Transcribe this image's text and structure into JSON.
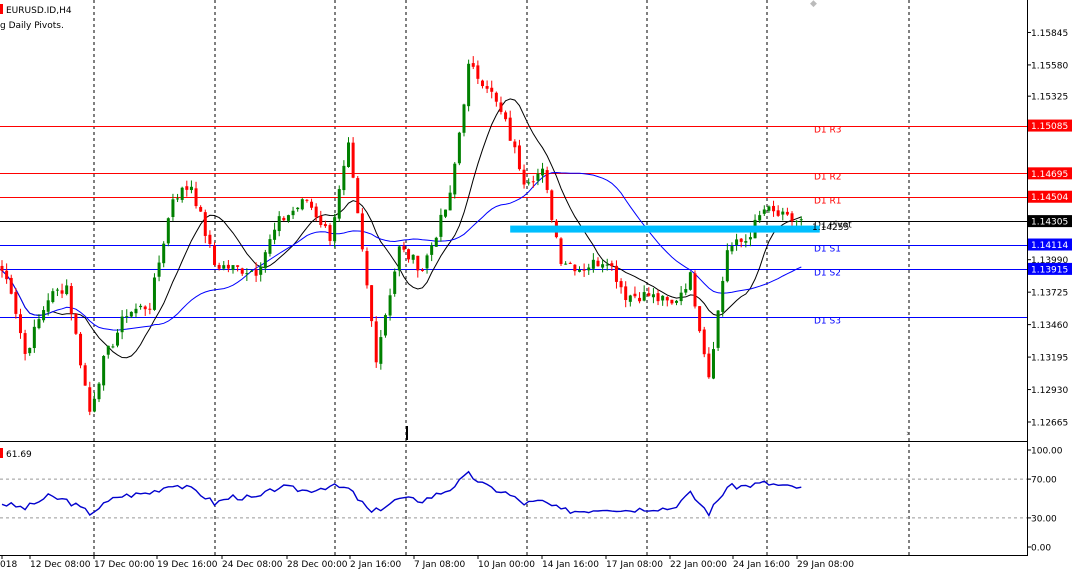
{
  "window": {
    "symbol_title": "EURUSD.ID,H4",
    "indicator_title": "g Daily Pivots.",
    "sub_indicator_value": "61.69"
  },
  "colors": {
    "background": "#ffffff",
    "bull": "#008000",
    "bear": "#ff0000",
    "resistance": "#ff0000",
    "support": "#0000ff",
    "pivot": "#000000",
    "ma_fast": "#000000",
    "ma_slow": "#0000ff",
    "zone": "#00bfff",
    "rsi": "#0000cd"
  },
  "chart_data": [
    {
      "type": "candlestick",
      "symbol": "EURUSD.ID",
      "timeframe": "H4",
      "y_ticks": [
        "1.15845",
        "1.15580",
        "1.15325",
        "1.15085",
        "1.14695",
        "1.14504",
        "1.14305",
        "1.14114",
        "1.13990",
        "1.13915",
        "1.13725",
        "1.13460",
        "1.13195",
        "1.12930",
        "1.12665"
      ],
      "ylim": [
        1.1251,
        1.1611
      ],
      "x_ticks": [
        "018",
        "12 Dec 08:00",
        "17 Dec 00:00",
        "19 Dec 16:00",
        "24 Dec 08:00",
        "28 Dec 00:00",
        "2 Jan 16:00",
        "7 Jan 08:00",
        "10 Jan 00:00",
        "14 Jan 16:00",
        "17 Jan 08:00",
        "22 Jan 00:00",
        "24 Jan 16:00",
        "29 Jan 08:00"
      ],
      "pivot_levels": [
        {
          "name": "D1 R3",
          "value": 1.15085,
          "label": "1.15085",
          "role": "resistance"
        },
        {
          "name": "D1 R2",
          "value": 1.14695,
          "label": "1.14695",
          "role": "resistance"
        },
        {
          "name": "D1 R1",
          "value": 1.14504,
          "label": "1.14504",
          "role": "resistance"
        },
        {
          "name": "D1 Pivot",
          "value": 1.14305,
          "label": "1.14305",
          "role": "pivot"
        },
        {
          "name": "D1 S1",
          "value": 1.14114,
          "label": "1.14114",
          "role": "support"
        },
        {
          "name": "D1 S2",
          "value": 1.13915,
          "label": "1.13915",
          "role": "support"
        },
        {
          "name": "D1 S3",
          "value": 1.13525,
          "label": "1.13525",
          "role": "support"
        }
      ],
      "current_price_label": "1.14255",
      "zone": {
        "price": 1.1424,
        "start_index": 110,
        "end_index": 177
      },
      "key_points": [
        {
          "i": 0,
          "p": 1.139
        },
        {
          "i": 2,
          "p": 1.1375
        },
        {
          "i": 5,
          "p": 1.1322
        },
        {
          "i": 10,
          "p": 1.1368
        },
        {
          "i": 14,
          "p": 1.1378
        },
        {
          "i": 19,
          "p": 1.1275
        },
        {
          "i": 22,
          "p": 1.1316
        },
        {
          "i": 27,
          "p": 1.1356
        },
        {
          "i": 32,
          "p": 1.1362
        },
        {
          "i": 37,
          "p": 1.145
        },
        {
          "i": 41,
          "p": 1.146
        },
        {
          "i": 46,
          "p": 1.1395
        },
        {
          "i": 50,
          "p": 1.1392
        },
        {
          "i": 55,
          "p": 1.139
        },
        {
          "i": 60,
          "p": 1.143
        },
        {
          "i": 66,
          "p": 1.1448
        },
        {
          "i": 71,
          "p": 1.1418
        },
        {
          "i": 75,
          "p": 1.149
        },
        {
          "i": 81,
          "p": 1.132
        },
        {
          "i": 86,
          "p": 1.1408
        },
        {
          "i": 91,
          "p": 1.1392
        },
        {
          "i": 97,
          "p": 1.145
        },
        {
          "i": 101,
          "p": 1.1556
        },
        {
          "i": 105,
          "p": 1.1542
        },
        {
          "i": 109,
          "p": 1.151
        },
        {
          "i": 113,
          "p": 1.1465
        },
        {
          "i": 117,
          "p": 1.147
        },
        {
          "i": 121,
          "p": 1.14
        },
        {
          "i": 125,
          "p": 1.1392
        },
        {
          "i": 131,
          "p": 1.14
        },
        {
          "i": 135,
          "p": 1.137
        },
        {
          "i": 140,
          "p": 1.137
        },
        {
          "i": 145,
          "p": 1.1362
        },
        {
          "i": 149,
          "p": 1.1385
        },
        {
          "i": 153,
          "p": 1.1305
        },
        {
          "i": 157,
          "p": 1.1408
        },
        {
          "i": 161,
          "p": 1.1415
        },
        {
          "i": 165,
          "p": 1.144
        },
        {
          "i": 170,
          "p": 1.1432
        },
        {
          "i": 173,
          "p": 1.143
        }
      ],
      "candle_count": 174
    },
    {
      "type": "line",
      "name": "RSI",
      "y_ticks": [
        "100.00",
        "70.00",
        "30.00",
        "0.00"
      ],
      "ylim": [
        0,
        100
      ],
      "levels": [
        70,
        30
      ],
      "key_points": [
        {
          "i": 0,
          "v": 45
        },
        {
          "i": 5,
          "v": 40
        },
        {
          "i": 10,
          "v": 52
        },
        {
          "i": 14,
          "v": 48
        },
        {
          "i": 19,
          "v": 35
        },
        {
          "i": 25,
          "v": 52
        },
        {
          "i": 32,
          "v": 56
        },
        {
          "i": 37,
          "v": 65
        },
        {
          "i": 42,
          "v": 58
        },
        {
          "i": 46,
          "v": 45
        },
        {
          "i": 50,
          "v": 52
        },
        {
          "i": 55,
          "v": 50
        },
        {
          "i": 60,
          "v": 62
        },
        {
          "i": 66,
          "v": 58
        },
        {
          "i": 71,
          "v": 63
        },
        {
          "i": 75,
          "v": 60
        },
        {
          "i": 80,
          "v": 35
        },
        {
          "i": 86,
          "v": 50
        },
        {
          "i": 91,
          "v": 48
        },
        {
          "i": 97,
          "v": 60
        },
        {
          "i": 101,
          "v": 75
        },
        {
          "i": 105,
          "v": 62
        },
        {
          "i": 109,
          "v": 56
        },
        {
          "i": 113,
          "v": 45
        },
        {
          "i": 117,
          "v": 47
        },
        {
          "i": 121,
          "v": 38
        },
        {
          "i": 125,
          "v": 37
        },
        {
          "i": 131,
          "v": 40
        },
        {
          "i": 135,
          "v": 38
        },
        {
          "i": 140,
          "v": 40
        },
        {
          "i": 145,
          "v": 40
        },
        {
          "i": 149,
          "v": 55
        },
        {
          "i": 153,
          "v": 35
        },
        {
          "i": 157,
          "v": 62
        },
        {
          "i": 161,
          "v": 63
        },
        {
          "i": 165,
          "v": 66
        },
        {
          "i": 170,
          "v": 62
        },
        {
          "i": 173,
          "v": 61.69
        }
      ]
    }
  ]
}
